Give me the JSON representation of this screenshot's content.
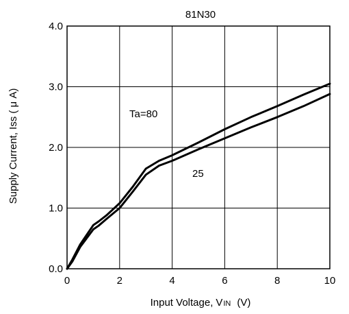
{
  "chart_data": {
    "type": "line",
    "title": "81N30",
    "xlabel": {
      "main": "Input Voltage",
      "separator": ",",
      "symbol": "V",
      "subscript": "IN",
      "unit": "(V)"
    },
    "ylabel": "Supply Current, Iss ( μ A)",
    "xlim": [
      0,
      10
    ],
    "ylim": [
      0,
      4
    ],
    "xticks": [
      "0",
      "2",
      "4",
      "6",
      "8",
      "10"
    ],
    "yticks": [
      "0.0",
      "1.0",
      "2.0",
      "3.0",
      "4.0"
    ],
    "grid": true,
    "colors": {
      "line": "#000000",
      "grid": "#000000",
      "background": "#ffffff"
    },
    "annotations": {
      "ta80": "Ta=80",
      "t25": "25"
    },
    "series": [
      {
        "name": "Ta=80",
        "x": [
          0,
          0.2,
          0.5,
          1.0,
          1.2,
          1.5,
          2.0,
          2.5,
          3.0,
          3.5,
          4.0,
          5.0,
          6.0,
          7.0,
          8.0,
          9.0,
          10.0
        ],
        "y": [
          0.0,
          0.15,
          0.4,
          0.72,
          0.78,
          0.88,
          1.08,
          1.35,
          1.65,
          1.78,
          1.87,
          2.08,
          2.3,
          2.5,
          2.68,
          2.87,
          3.05
        ]
      },
      {
        "name": "25",
        "x": [
          0,
          0.2,
          0.5,
          1.0,
          1.2,
          1.5,
          2.0,
          2.5,
          3.0,
          3.5,
          4.0,
          5.0,
          6.0,
          7.0,
          8.0,
          9.0,
          10.0
        ],
        "y": [
          0.0,
          0.12,
          0.36,
          0.65,
          0.71,
          0.82,
          1.0,
          1.27,
          1.55,
          1.7,
          1.78,
          1.97,
          2.15,
          2.33,
          2.5,
          2.68,
          2.88
        ]
      }
    ]
  }
}
